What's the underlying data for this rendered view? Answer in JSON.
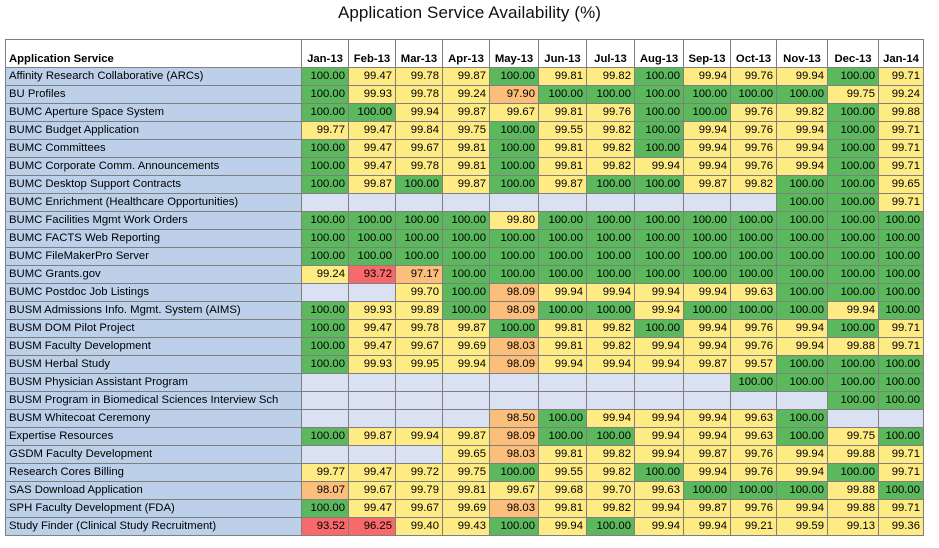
{
  "chart_data": {
    "type": "table",
    "title": "Application Service Availability (%)",
    "header_label": "Application Service",
    "columns": [
      "Jan-13",
      "Feb-13",
      "Mar-13",
      "Apr-13",
      "May-13",
      "Jun-13",
      "Jul-13",
      "Aug-13",
      "Sep-13",
      "Oct-13",
      "Nov-13",
      "Dec-13",
      "Jan-14"
    ],
    "rows": [
      {
        "name": "Affinity Research Collaborative (ARCs)",
        "values": [
          "100.00",
          "99.47",
          "99.78",
          "99.87",
          "100.00",
          "99.81",
          "99.82",
          "100.00",
          "99.94",
          "99.76",
          "99.94",
          "100.00",
          "99.71"
        ]
      },
      {
        "name": "BU Profiles",
        "values": [
          "100.00",
          "99.93",
          "99.78",
          "99.24",
          "97.90",
          "100.00",
          "100.00",
          "100.00",
          "100.00",
          "100.00",
          "100.00",
          "99.75",
          "99.24"
        ]
      },
      {
        "name": "BUMC Aperture Space System",
        "values": [
          "100.00",
          "100.00",
          "99.94",
          "99.87",
          "99.67",
          "99.81",
          "99.76",
          "100.00",
          "100.00",
          "99.76",
          "99.82",
          "100.00",
          "99.88"
        ]
      },
      {
        "name": "BUMC Budget Application",
        "values": [
          "99.77",
          "99.47",
          "99.84",
          "99.75",
          "100.00",
          "99.55",
          "99.82",
          "100.00",
          "99.94",
          "99.76",
          "99.94",
          "100.00",
          "99.71"
        ]
      },
      {
        "name": "BUMC Committees",
        "values": [
          "100.00",
          "99.47",
          "99.67",
          "99.81",
          "100.00",
          "99.81",
          "99.82",
          "100.00",
          "99.94",
          "99.76",
          "99.94",
          "100.00",
          "99.71"
        ]
      },
      {
        "name": "BUMC Corporate Comm. Announcements",
        "values": [
          "100.00",
          "99.47",
          "99.78",
          "99.81",
          "100.00",
          "99.81",
          "99.82",
          "99.94",
          "99.94",
          "99.76",
          "99.94",
          "100.00",
          "99.71"
        ]
      },
      {
        "name": "BUMC Desktop Support Contracts",
        "values": [
          "100.00",
          "99.87",
          "100.00",
          "99.87",
          "100.00",
          "99.87",
          "100.00",
          "100.00",
          "99.87",
          "99.82",
          "100.00",
          "100.00",
          "99.65"
        ]
      },
      {
        "name": "BUMC Enrichment (Healthcare Opportunities)",
        "values": [
          "",
          "",
          "",
          "",
          "",
          "",
          "",
          "",
          "",
          "",
          "100.00",
          "100.00",
          "99.71"
        ]
      },
      {
        "name": "BUMC Facilities Mgmt Work Orders",
        "values": [
          "100.00",
          "100.00",
          "100.00",
          "100.00",
          "99.80",
          "100.00",
          "100.00",
          "100.00",
          "100.00",
          "100.00",
          "100.00",
          "100.00",
          "100.00"
        ]
      },
      {
        "name": "BUMC FACTS Web Reporting",
        "values": [
          "100.00",
          "100.00",
          "100.00",
          "100.00",
          "100.00",
          "100.00",
          "100.00",
          "100.00",
          "100.00",
          "100.00",
          "100.00",
          "100.00",
          "100.00"
        ]
      },
      {
        "name": "BUMC FileMakerPro Server",
        "values": [
          "100.00",
          "100.00",
          "100.00",
          "100.00",
          "100.00",
          "100.00",
          "100.00",
          "100.00",
          "100.00",
          "100.00",
          "100.00",
          "100.00",
          "100.00"
        ]
      },
      {
        "name": "BUMC Grants.gov",
        "values": [
          "99.24",
          "93.72",
          "97.17",
          "100.00",
          "100.00",
          "100.00",
          "100.00",
          "100.00",
          "100.00",
          "100.00",
          "100.00",
          "100.00",
          "100.00"
        ]
      },
      {
        "name": "BUMC Postdoc Job Listings",
        "values": [
          "",
          "",
          "99.70",
          "100.00",
          "98.09",
          "99.94",
          "99.94",
          "99.94",
          "99.94",
          "99.63",
          "100.00",
          "100.00",
          "100.00"
        ]
      },
      {
        "name": "BUSM Admissions Info. Mgmt. System (AIMS)",
        "values": [
          "100.00",
          "99.93",
          "99.89",
          "100.00",
          "98.09",
          "100.00",
          "100.00",
          "99.94",
          "100.00",
          "100.00",
          "100.00",
          "99.94",
          "100.00"
        ]
      },
      {
        "name": "BUSM DOM Pilot Project",
        "values": [
          "100.00",
          "99.47",
          "99.78",
          "99.87",
          "100.00",
          "99.81",
          "99.82",
          "100.00",
          "99.94",
          "99.76",
          "99.94",
          "100.00",
          "99.71"
        ]
      },
      {
        "name": "BUSM Faculty Development",
        "values": [
          "100.00",
          "99.47",
          "99.67",
          "99.69",
          "98.03",
          "99.81",
          "99.82",
          "99.94",
          "99.94",
          "99.76",
          "99.94",
          "99.88",
          "99.71"
        ]
      },
      {
        "name": "BUSM Herbal Study",
        "values": [
          "100.00",
          "99.93",
          "99.95",
          "99.94",
          "98.09",
          "99.94",
          "99.94",
          "99.94",
          "99.87",
          "99.57",
          "100.00",
          "100.00",
          "100.00"
        ]
      },
      {
        "name": "BUSM Physician Assistant Program",
        "values": [
          "",
          "",
          "",
          "",
          "",
          "",
          "",
          "",
          "",
          "100.00",
          "100.00",
          "100.00",
          "100.00"
        ]
      },
      {
        "name": "BUSM Program in Biomedical Sciences Interview Sch",
        "values": [
          "",
          "",
          "",
          "",
          "",
          "",
          "",
          "",
          "",
          "",
          "",
          "100.00",
          "100.00"
        ]
      },
      {
        "name": "BUSM Whitecoat Ceremony",
        "values": [
          "",
          "",
          "",
          "",
          "98.50",
          "100.00",
          "99.94",
          "99.94",
          "99.94",
          "99.63",
          "100.00",
          "",
          ""
        ]
      },
      {
        "name": "Expertise Resources",
        "values": [
          "100.00",
          "99.87",
          "99.94",
          "99.87",
          "98.09",
          "100.00",
          "100.00",
          "99.94",
          "99.94",
          "99.63",
          "100.00",
          "99.75",
          "100.00"
        ]
      },
      {
        "name": "GSDM Faculty Development",
        "values": [
          "",
          "",
          "",
          "99.65",
          "98.03",
          "99.81",
          "99.82",
          "99.94",
          "99.87",
          "99.76",
          "99.94",
          "99.88",
          "99.71"
        ]
      },
      {
        "name": "Research Cores Billing",
        "values": [
          "99.77",
          "99.47",
          "99.72",
          "99.75",
          "100.00",
          "99.55",
          "99.82",
          "100.00",
          "99.94",
          "99.76",
          "99.94",
          "100.00",
          "99.71"
        ]
      },
      {
        "name": "SAS Download Application",
        "values": [
          "98.07",
          "99.67",
          "99.79",
          "99.81",
          "99.67",
          "99.68",
          "99.70",
          "99.63",
          "100.00",
          "100.00",
          "100.00",
          "99.88",
          "100.00"
        ]
      },
      {
        "name": "SPH Faculty Development (FDA)",
        "values": [
          "100.00",
          "99.47",
          "99.67",
          "99.69",
          "98.03",
          "99.81",
          "99.82",
          "99.94",
          "99.87",
          "99.76",
          "99.94",
          "99.88",
          "99.71"
        ]
      },
      {
        "name": "Study Finder (Clinical Study Recruitment)",
        "values": [
          "93.52",
          "96.25",
          "99.40",
          "99.43",
          "100.00",
          "99.94",
          "100.00",
          "99.94",
          "99.94",
          "99.21",
          "99.59",
          "99.13",
          "99.36"
        ]
      }
    ],
    "colors": {
      "full": "#5cb85c",
      "high": "#ffeb84",
      "medium": "#fcbf7b",
      "low": "#f8696b",
      "empty": "#d9e1f2",
      "service_name": "#bcd0ea"
    }
  }
}
